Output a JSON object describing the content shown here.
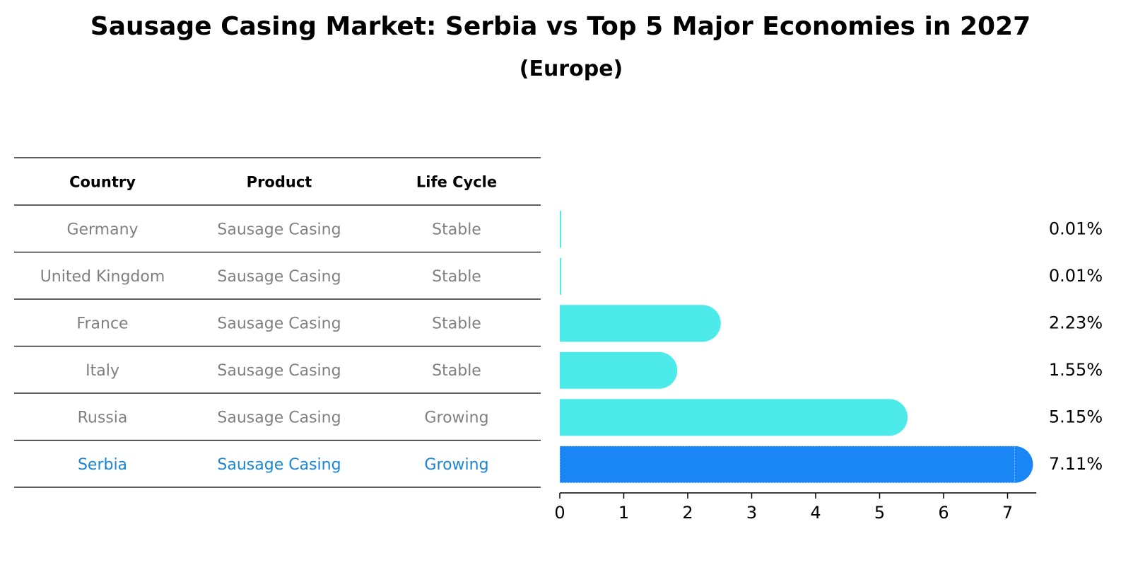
{
  "title": "Sausage Casing Market: Serbia vs Top 5 Major Economies in 2027",
  "subtitle": "(Europe)",
  "colors": {
    "bar_default": "#4DEAEA",
    "bar_highlight": "#1A86F5",
    "text_muted": "#808080",
    "text_highlight": "#1A86D4"
  },
  "chart_data": {
    "type": "bar",
    "orientation": "horizontal",
    "table_headers": [
      "Country",
      "Product",
      "Life Cycle"
    ],
    "rows": [
      {
        "country": "Germany",
        "product": "Sausage Casing",
        "life_cycle": "Stable",
        "value": 0.01,
        "label": "0.01%",
        "highlight": false
      },
      {
        "country": "United Kingdom",
        "product": "Sausage Casing",
        "life_cycle": "Stable",
        "value": 0.01,
        "label": "0.01%",
        "highlight": false
      },
      {
        "country": "France",
        "product": "Sausage Casing",
        "life_cycle": "Stable",
        "value": 2.23,
        "label": "2.23%",
        "highlight": false
      },
      {
        "country": "Italy",
        "product": "Sausage Casing",
        "life_cycle": "Stable",
        "value": 1.55,
        "label": "1.55%",
        "highlight": false
      },
      {
        "country": "Russia",
        "product": "Sausage Casing",
        "life_cycle": "Growing",
        "value": 5.15,
        "label": "5.15%",
        "highlight": false
      },
      {
        "country": "Serbia",
        "product": "Sausage Casing",
        "life_cycle": "Growing",
        "value": 7.11,
        "label": "7.11%",
        "highlight": true
      }
    ],
    "x_ticks": [
      "0",
      "1",
      "2",
      "3",
      "4",
      "5",
      "6",
      "7"
    ],
    "xlim": [
      0,
      7.45
    ],
    "xlabel": "",
    "ylabel": "",
    "grid": false
  }
}
